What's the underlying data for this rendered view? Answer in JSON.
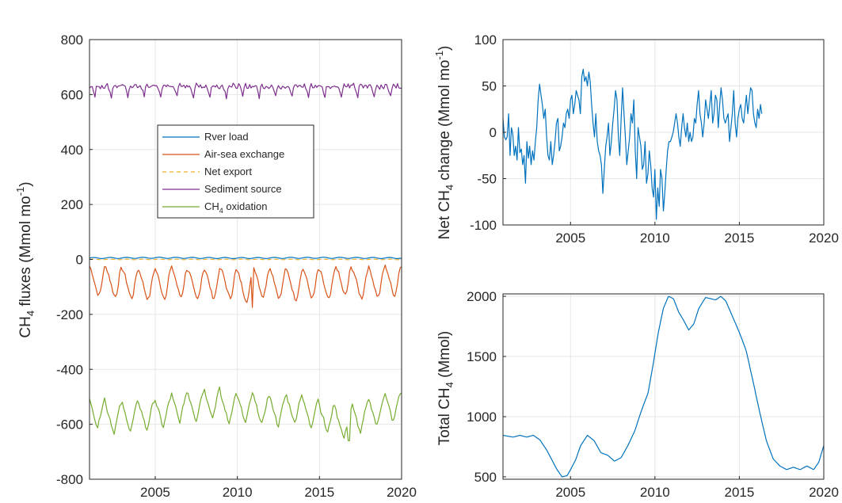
{
  "chart_data": [
    {
      "id": "fluxes",
      "type": "line",
      "ylabel": {
        "main": "CH",
        "sub": "4",
        "rest": " fluxes (Mmol mo",
        "sup": "-1",
        "close": ")"
      },
      "xlim": [
        2001,
        2020
      ],
      "ylim": [
        -800,
        800
      ],
      "xticks": [
        2005,
        2010,
        2015,
        2020
      ],
      "yticks": [
        -800,
        -600,
        -400,
        -200,
        0,
        200,
        400,
        600,
        800
      ],
      "grid": true,
      "legend": {
        "placement": "center-left",
        "entries": [
          {
            "label": "Rver load",
            "color": "#0072BD",
            "dash": false
          },
          {
            "label": "Air-sea exchange",
            "color": "#D95319",
            "dash": false
          },
          {
            "label": "Net export",
            "color": "#EDB120",
            "dash": true
          },
          {
            "label": "Sediment source",
            "color": "#7E2F8E",
            "dash": false
          },
          {
            "label_main": "CH",
            "label_sub": "4",
            "label_rest": " oxidation",
            "color": "#77AC30",
            "dash": false
          }
        ]
      },
      "series": [
        {
          "key": "river",
          "color": "#0072BD",
          "dash": false,
          "start": 2001,
          "keypoints": [
            [
              2001,
              5
            ],
            [
              2005,
              6
            ],
            [
              2010,
              5
            ],
            [
              2015,
              6
            ],
            [
              2020,
              5
            ]
          ],
          "seasonal_amp": 2
        },
        {
          "key": "airsea",
          "color": "#D95319",
          "dash": false,
          "start": 2001,
          "monthly_pattern": [
            -35,
            -45,
            -60,
            -80,
            -100,
            -120,
            -135,
            -140,
            -125,
            -95,
            -60,
            -40
          ],
          "annual_offsets": [
            10,
            5,
            0,
            -5,
            0,
            5,
            -5,
            0,
            0,
            -10,
            5,
            0,
            -5,
            0,
            -5,
            10,
            0,
            5,
            10
          ],
          "min_value": -175,
          "min_at": 2010.9
        },
        {
          "key": "export",
          "color": "#EDB120",
          "dash": true,
          "start": 2001,
          "keypoints": [
            [
              2001,
              0
            ],
            [
              2020,
              0
            ]
          ],
          "seasonal_amp": 1
        },
        {
          "key": "sediment",
          "color": "#7E2F8E",
          "dash": false,
          "start": 2001,
          "monthly_pattern": [
            630,
            635,
            625,
            610,
            590,
            625,
            635,
            630,
            625,
            635,
            630,
            628
          ],
          "annual_offsets": [
            0,
            0,
            0,
            0,
            0,
            0,
            0,
            0,
            0,
            0,
            0,
            0,
            0,
            0,
            0,
            0,
            0,
            0,
            0
          ]
        },
        {
          "key": "oxidation",
          "color": "#77AC30",
          "dash": false,
          "start": 2001,
          "monthly_pattern": [
            -520,
            -540,
            -555,
            -570,
            -590,
            -610,
            -620,
            -600,
            -575,
            -550,
            -530,
            -515
          ],
          "annual_offsets": [
            10,
            -10,
            -5,
            0,
            10,
            30,
            35,
            45,
            25,
            25,
            20,
            15,
            25,
            10,
            -10,
            -30,
            -10,
            15,
            30
          ],
          "min_value": -660,
          "min_at": 2016.8
        }
      ]
    },
    {
      "id": "netchange",
      "type": "line",
      "ylabel": {
        "pre": "Net CH",
        "sub": "4",
        "rest": " change (Mmol mo",
        "sup": "-1",
        "close": ")"
      },
      "xlim": [
        2001,
        2020
      ],
      "ylim": [
        -100,
        100
      ],
      "xticks": [
        2005,
        2010,
        2015,
        2020
      ],
      "yticks": [
        -100,
        -50,
        0,
        50,
        100
      ],
      "grid": true,
      "series": [
        {
          "key": "net",
          "color": "#0072BD",
          "start": 2001,
          "values": [
            15,
            -5,
            -8,
            -5,
            20,
            -25,
            5,
            -2,
            -25,
            -15,
            -30,
            5,
            -22,
            -18,
            -35,
            -25,
            -55,
            -10,
            -28,
            -15,
            -35,
            -20,
            -30,
            -10,
            5,
            35,
            52,
            40,
            30,
            15,
            25,
            -5,
            -25,
            -30,
            -10,
            -35,
            -25,
            -10,
            10,
            15,
            -20,
            -15,
            -5,
            10,
            5,
            20,
            25,
            15,
            35,
            40,
            20,
            30,
            45,
            40,
            35,
            20,
            60,
            68,
            55,
            60,
            50,
            65,
            55,
            30,
            10,
            -5,
            20,
            -10,
            -20,
            -25,
            -35,
            -66,
            -40,
            -15,
            -5,
            10,
            -25,
            -10,
            10,
            25,
            45,
            35,
            -5,
            -25,
            15,
            48,
            20,
            -5,
            -35,
            -20,
            -5,
            20,
            10,
            35,
            -20,
            -50,
            5,
            -5,
            -15,
            -40,
            -35,
            -10,
            -55,
            -45,
            -20,
            -35,
            -60,
            -70,
            -40,
            -94,
            -60,
            -80,
            -40,
            -50,
            -85,
            -65,
            -40,
            -20,
            -10,
            -10,
            -5,
            0,
            10,
            20,
            10,
            -5,
            -15,
            5,
            20,
            5,
            -5,
            10,
            -10,
            0,
            -10,
            -5,
            15,
            10,
            30,
            45,
            20,
            10,
            -5,
            10,
            35,
            25,
            15,
            30,
            45,
            10,
            20,
            40,
            35,
            5,
            30,
            48,
            35,
            15,
            10,
            15,
            20,
            -10,
            5,
            20,
            45,
            10,
            -5,
            15,
            25,
            30,
            15,
            10,
            25,
            40,
            20,
            35,
            48,
            45,
            20,
            10,
            5,
            25,
            15,
            30,
            20
          ]
        }
      ]
    },
    {
      "id": "total",
      "type": "line",
      "ylabel": {
        "pre": "Total CH",
        "sub": "4",
        "rest": " (Mmol)"
      },
      "xlim": [
        2001,
        2020
      ],
      "ylim": [
        480,
        2020
      ],
      "xticks": [
        2005,
        2010,
        2015,
        2020
      ],
      "yticks": [
        500,
        1000,
        1500,
        2000
      ],
      "grid": true,
      "series": [
        {
          "key": "total",
          "color": "#0072BD",
          "points": [
            [
              2001,
              845
            ],
            [
              2001.6,
              830
            ],
            [
              2002.0,
              845
            ],
            [
              2002.4,
              830
            ],
            [
              2002.8,
              845
            ],
            [
              2003.2,
              805
            ],
            [
              2003.6,
              720
            ],
            [
              2003.9,
              640
            ],
            [
              2004.2,
              560
            ],
            [
              2004.5,
              500
            ],
            [
              2004.8,
              510
            ],
            [
              2005.0,
              560
            ],
            [
              2005.3,
              640
            ],
            [
              2005.6,
              760
            ],
            [
              2006.0,
              845
            ],
            [
              2006.4,
              800
            ],
            [
              2006.8,
              700
            ],
            [
              2007.2,
              680
            ],
            [
              2007.6,
              630
            ],
            [
              2008.0,
              660
            ],
            [
              2008.4,
              760
            ],
            [
              2008.8,
              880
            ],
            [
              2009.2,
              1050
            ],
            [
              2009.6,
              1200
            ],
            [
              2009.9,
              1440
            ],
            [
              2010.2,
              1700
            ],
            [
              2010.5,
              1900
            ],
            [
              2010.8,
              2000
            ],
            [
              2011.1,
              1980
            ],
            [
              2011.4,
              1870
            ],
            [
              2011.7,
              1800
            ],
            [
              2012.0,
              1720
            ],
            [
              2012.3,
              1770
            ],
            [
              2012.6,
              1900
            ],
            [
              2013.0,
              1990
            ],
            [
              2013.3,
              1980
            ],
            [
              2013.6,
              1970
            ],
            [
              2013.9,
              2000
            ],
            [
              2014.2,
              1960
            ],
            [
              2014.6,
              1830
            ],
            [
              2015.0,
              1700
            ],
            [
              2015.4,
              1550
            ],
            [
              2015.8,
              1300
            ],
            [
              2016.2,
              1040
            ],
            [
              2016.6,
              800
            ],
            [
              2017.0,
              650
            ],
            [
              2017.4,
              590
            ],
            [
              2017.8,
              560
            ],
            [
              2018.2,
              580
            ],
            [
              2018.6,
              560
            ],
            [
              2019.0,
              590
            ],
            [
              2019.4,
              560
            ],
            [
              2019.7,
              620
            ],
            [
              2020.0,
              760
            ]
          ]
        }
      ]
    }
  ]
}
